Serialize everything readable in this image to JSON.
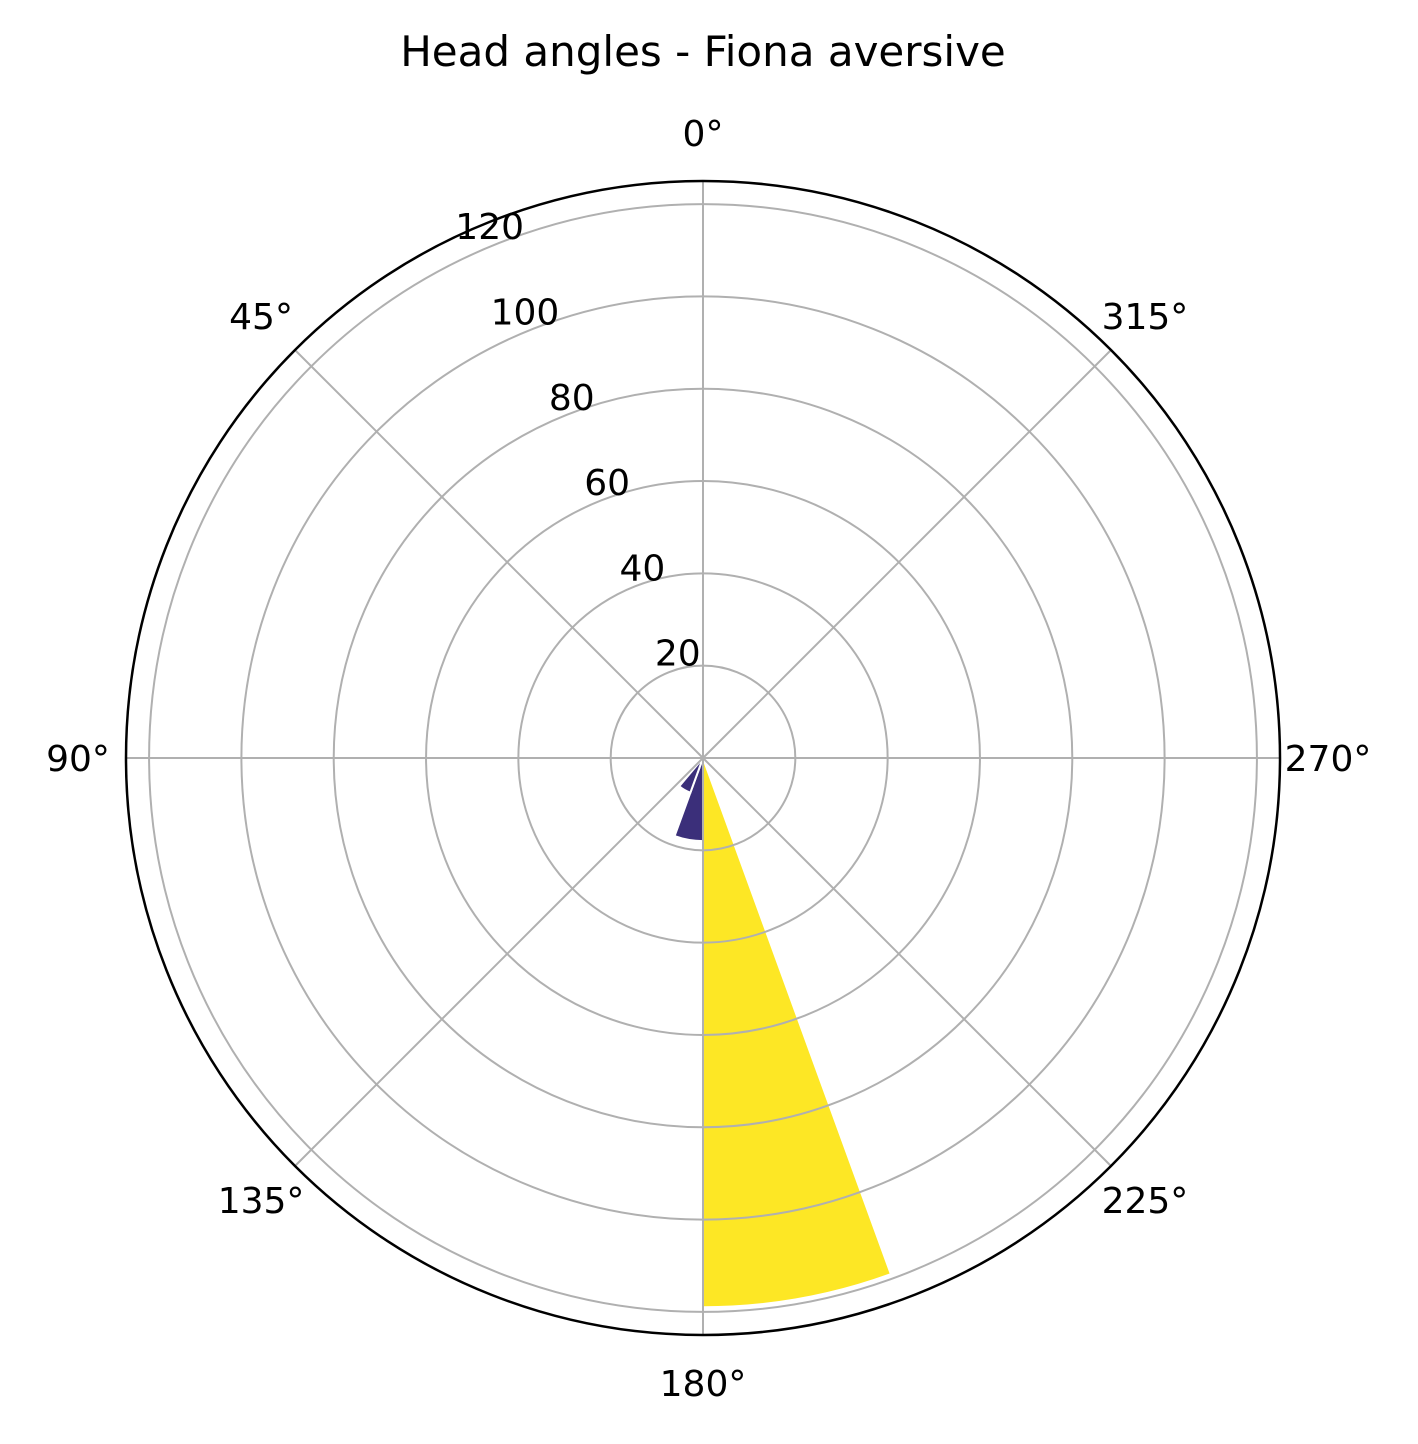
{
  "chart_data": {
    "type": "polar-bar",
    "title": "Head angles - Fiona aversive",
    "theta_direction": "counterclockwise",
    "theta_zero": "top",
    "angle_tick_labels": [
      {
        "angle": 0,
        "label": "0°"
      },
      {
        "angle": 45,
        "label": "45°"
      },
      {
        "angle": 90,
        "label": "90°"
      },
      {
        "angle": 135,
        "label": "135°"
      },
      {
        "angle": 180,
        "label": "180°"
      },
      {
        "angle": 225,
        "label": "225°"
      },
      {
        "angle": 270,
        "label": "270°"
      },
      {
        "angle": 315,
        "label": "315°"
      }
    ],
    "radial_tick_labels": [
      {
        "value": 20,
        "label": "20"
      },
      {
        "value": 40,
        "label": "40"
      },
      {
        "value": 60,
        "label": "60"
      },
      {
        "value": 80,
        "label": "80"
      },
      {
        "value": 100,
        "label": "100"
      },
      {
        "value": 120,
        "label": "120"
      }
    ],
    "rlim": [
      0,
      125
    ],
    "grid": true,
    "bars": [
      {
        "angle_start": 180,
        "angle_end": 200,
        "value": 119,
        "color": "#fde725"
      },
      {
        "angle_start": 160,
        "angle_end": 180,
        "value": 18,
        "color": "#3b2f7a"
      },
      {
        "angle_start": 140,
        "angle_end": 160,
        "value": 8,
        "color": "#3b2f7a"
      }
    ],
    "colors": {
      "grid": "#b0b0b0",
      "frame": "#000000"
    }
  }
}
